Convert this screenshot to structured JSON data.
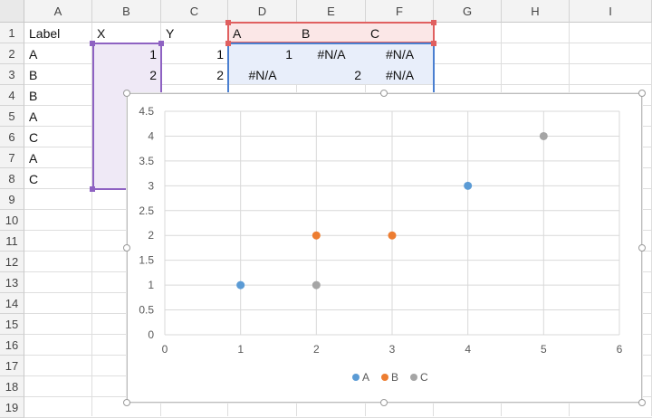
{
  "columns": [
    "A",
    "B",
    "C",
    "D",
    "E",
    "F",
    "G",
    "H",
    "I"
  ],
  "rows": [
    "1",
    "2",
    "3",
    "4",
    "5",
    "6",
    "7",
    "8",
    "9",
    "10",
    "11",
    "12",
    "13",
    "14",
    "15",
    "16",
    "17",
    "18",
    "19"
  ],
  "cells": [
    {
      "col": 0,
      "row": 0,
      "v": "Label"
    },
    {
      "col": 1,
      "row": 0,
      "v": "X"
    },
    {
      "col": 2,
      "row": 0,
      "v": "Y"
    },
    {
      "col": 3,
      "row": 0,
      "v": "A"
    },
    {
      "col": 4,
      "row": 0,
      "v": "B"
    },
    {
      "col": 5,
      "row": 0,
      "v": "C"
    },
    {
      "col": 0,
      "row": 1,
      "v": "A"
    },
    {
      "col": 1,
      "row": 1,
      "v": "1",
      "num": true
    },
    {
      "col": 2,
      "row": 1,
      "v": "1",
      "num": true
    },
    {
      "col": 3,
      "row": 1,
      "v": "1",
      "num": true
    },
    {
      "col": 4,
      "row": 1,
      "v": "#N/A",
      "err": true
    },
    {
      "col": 5,
      "row": 1,
      "v": "#N/A",
      "err": true
    },
    {
      "col": 0,
      "row": 2,
      "v": "B"
    },
    {
      "col": 1,
      "row": 2,
      "v": "2",
      "num": true
    },
    {
      "col": 2,
      "row": 2,
      "v": "2",
      "num": true
    },
    {
      "col": 3,
      "row": 2,
      "v": "#N/A",
      "err": true
    },
    {
      "col": 4,
      "row": 2,
      "v": "2",
      "num": true
    },
    {
      "col": 5,
      "row": 2,
      "v": "#N/A",
      "err": true
    },
    {
      "col": 0,
      "row": 3,
      "v": "B"
    },
    {
      "col": 0,
      "row": 4,
      "v": "A"
    },
    {
      "col": 0,
      "row": 5,
      "v": "C"
    },
    {
      "col": 0,
      "row": 6,
      "v": "A"
    },
    {
      "col": 0,
      "row": 7,
      "v": "C"
    }
  ],
  "selection_colors": {
    "x_range": "#8e62c2",
    "header_range": "#e06060",
    "value_range": "#4a7fd0"
  },
  "chart_data": {
    "type": "scatter",
    "title": "",
    "xlabel": "",
    "ylabel": "",
    "xlim": [
      0,
      6
    ],
    "ylim": [
      0,
      4.5
    ],
    "x_ticks": [
      "0",
      "1",
      "2",
      "3",
      "4",
      "5",
      "6"
    ],
    "y_ticks": [
      "0",
      "0.5",
      "1",
      "1.5",
      "2",
      "2.5",
      "3",
      "3.5",
      "4",
      "4.5"
    ],
    "grid": true,
    "legend_position": "bottom",
    "series": [
      {
        "name": "A",
        "color": "#5b9bd5",
        "points": [
          [
            1,
            1
          ],
          [
            4,
            3
          ]
        ]
      },
      {
        "name": "B",
        "color": "#ed7d31",
        "points": [
          [
            2,
            2
          ],
          [
            3,
            2
          ]
        ]
      },
      {
        "name": "C",
        "color": "#a5a5a5",
        "points": [
          [
            2,
            1
          ],
          [
            5,
            4
          ]
        ]
      }
    ]
  }
}
